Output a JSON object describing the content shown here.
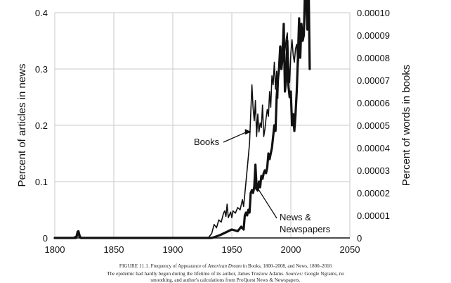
{
  "chart_data": {
    "type": "line",
    "x_label": "",
    "left_axis": {
      "label": "Percent of articles in news",
      "ticks": [
        "0",
        "0.1",
        "0.2",
        "0.3",
        "0.4"
      ],
      "ylim": [
        0,
        0.4
      ]
    },
    "right_axis": {
      "label": "Percent of words in books",
      "ticks": [
        "0",
        "0.00001",
        "0.00002",
        "0.00003",
        "0.00004",
        "0.00005",
        "0.00006",
        "0.00007",
        "0.00008",
        "0.00009",
        "0.00010"
      ],
      "ylim": [
        0,
        0.0001
      ]
    },
    "x_ticks": [
      "1800",
      "1850",
      "1900",
      "1950",
      "2000",
      "2050"
    ],
    "xlim": [
      1800,
      2050
    ],
    "grid": true,
    "series": [
      {
        "name": "Books",
        "axis": "right",
        "x": [
          1800,
          1815,
          1818,
          1819,
          1820,
          1821,
          1823,
          1840,
          1880,
          1920,
          1930,
          1933,
          1935,
          1937,
          1939,
          1941,
          1943,
          1944,
          1945,
          1946,
          1947,
          1949,
          1950,
          1951,
          1953,
          1955,
          1957,
          1959,
          1960,
          1962,
          1964,
          1965,
          1966,
          1967,
          1968,
          1969,
          1970,
          1971,
          1972,
          1973,
          1974,
          1975,
          1976,
          1977,
          1978,
          1979,
          1980,
          1981,
          1982,
          1983,
          1984,
          1985,
          1986,
          1987,
          1988,
          1989,
          1990,
          1991,
          1992,
          1993,
          1994,
          1995,
          1996,
          1997,
          1998,
          1999,
          2000,
          2001,
          2002,
          2003,
          2004,
          2005,
          2006,
          2007,
          2008
        ],
        "y": [
          0,
          0,
          8e-07,
          3e-06,
          1e-06,
          0,
          0,
          0,
          0,
          0,
          0,
          2e-06,
          6e-06,
          4.5e-06,
          8e-06,
          7e-06,
          1.1e-05,
          1.2e-05,
          9.5e-06,
          1.5e-05,
          9e-06,
          1.15e-05,
          9e-06,
          1.2e-05,
          1.1e-05,
          1.35e-05,
          1.25e-05,
          1.7e-05,
          1.4e-05,
          2.5e-05,
          3.6e-05,
          4.2e-05,
          5.5e-05,
          6.8e-05,
          5.8e-05,
          5.2e-05,
          6.1e-05,
          4.5e-05,
          5.5e-05,
          4.7e-05,
          5.1e-05,
          4.9e-05,
          5.9e-05,
          4.5e-05,
          4.8e-05,
          5.3e-05,
          5.7e-05,
          5.4e-05,
          6.5e-05,
          5.8e-05,
          7.2e-05,
          6.8e-05,
          7.8e-05,
          6.6e-05,
          7.4e-05,
          6.2e-05,
          7.8e-05,
          8.5e-05,
          8.1e-05,
          8.7e-05,
          8.6e-05,
          8.3e-05,
          8.8e-05,
          9.1e-05,
          7.9e-05,
          6.9e-05,
          8.2e-05,
          8.8e-05,
          8.1e-05,
          7.8e-05,
          8.4e-05,
          8.6e-05,
          7.5e-05,
          8.2e-05,
          8.7e-05
        ]
      },
      {
        "name": "News & Newspapers",
        "axis": "left",
        "x": [
          1800,
          1818,
          1819,
          1820,
          1821,
          1822,
          1824,
          1850,
          1900,
          1930,
          1933,
          1936,
          1940,
          1945,
          1950,
          1955,
          1958,
          1960,
          1961,
          1962,
          1963,
          1964,
          1965,
          1966,
          1967,
          1968,
          1969,
          1970,
          1971,
          1972,
          1973,
          1974,
          1975,
          1976,
          1977,
          1978,
          1979,
          1980,
          1981,
          1982,
          1983,
          1984,
          1985,
          1986,
          1987,
          1988,
          1989,
          1990,
          1991,
          1992,
          1993,
          1994,
          1995,
          1996,
          1997,
          1998,
          1999,
          2000,
          2001,
          2002,
          2003,
          2004,
          2005,
          2006,
          2007,
          2008,
          2009,
          2010,
          2011,
          2012,
          2013,
          2014,
          2015,
          2016
        ],
        "y": [
          0,
          0,
          0.005,
          0.012,
          0.004,
          0,
          0,
          0,
          0,
          0,
          0,
          0.002,
          0.005,
          0.01,
          0.015,
          0.012,
          0.02,
          0.015,
          0.04,
          0.045,
          0.04,
          0.05,
          0.045,
          0.08,
          0.085,
          0.08,
          0.09,
          0.13,
          0.09,
          0.085,
          0.1,
          0.09,
          0.11,
          0.105,
          0.115,
          0.12,
          0.115,
          0.125,
          0.15,
          0.14,
          0.15,
          0.16,
          0.18,
          0.2,
          0.19,
          0.25,
          0.28,
          0.3,
          0.34,
          0.3,
          0.32,
          0.38,
          0.26,
          0.28,
          0.35,
          0.27,
          0.25,
          0.26,
          0.2,
          0.22,
          0.19,
          0.22,
          0.26,
          0.32,
          0.39,
          0.32,
          0.38,
          0.35,
          0.36,
          0.44,
          0.43,
          0.37,
          0.46,
          0.3
        ]
      }
    ],
    "annotations": [
      {
        "text": "Books",
        "target_series": "Books",
        "target_x": 1966.5,
        "target_value": 3.4e-05
      },
      {
        "text_lines": [
          "News &",
          "Newspapers"
        ],
        "target_series": "News & Newspapers",
        "target_x": 1966,
        "target_value": 0.06
      }
    ]
  },
  "caption": {
    "figure_label": "FIGURE 11.1",
    "line1_prefix": "Frequency of Appearance of ",
    "line1_italic": "American Dream",
    "line1_suffix": " in Books, 1800–2008, and News, 1800–2016",
    "line2_prefix": "The epidemic had hardly begun during the lifetime of its author, James Truslow Adams. ",
    "line2_sources": "Sources:",
    "line2_suffix": " Google Ngrams, no",
    "line3": "smoothing, and author's calculations from ProQuest News & Newspapers."
  }
}
